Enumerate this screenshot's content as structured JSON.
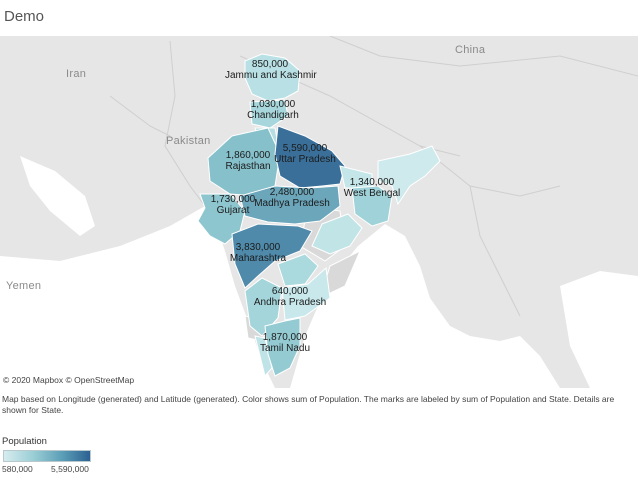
{
  "title": "Demo",
  "map": {
    "countries": [
      {
        "id": "iran",
        "name": "Iran"
      },
      {
        "id": "pakistan",
        "name": "Pakistan"
      },
      {
        "id": "china",
        "name": "China"
      },
      {
        "id": "yemen",
        "name": "Yemen"
      }
    ],
    "states": [
      {
        "id": "jammu-and-kashmir",
        "name": "Jammu and Kashmir",
        "population_label": "850,000",
        "population": 850000
      },
      {
        "id": "chandigarh",
        "name": "Chandigarh",
        "population_label": "1,030,000",
        "population": 1030000
      },
      {
        "id": "rajasthan",
        "name": "Rajasthan",
        "population_label": "1,860,000",
        "population": 1860000
      },
      {
        "id": "uttar-pradesh",
        "name": "Uttar Pradesh",
        "population_label": "5,590,000",
        "population": 5590000
      },
      {
        "id": "west-bengal",
        "name": "West Bengal",
        "population_label": "1,340,000",
        "population": 1340000
      },
      {
        "id": "madhya-pradesh",
        "name": "Madhya Pradesh",
        "population_label": "2,480,000",
        "population": 2480000
      },
      {
        "id": "gujarat",
        "name": "Gujarat",
        "population_label": "1,730,000",
        "population": 1730000
      },
      {
        "id": "maharashtra",
        "name": "Maharashtra",
        "population_label": "3,830,000",
        "population": 3830000
      },
      {
        "id": "andhra-pradesh",
        "name": "Andhra Pradesh",
        "population_label": "640,000",
        "population": 640000
      },
      {
        "id": "tamil-nadu",
        "name": "Tamil Nadu",
        "population_label": "1,870,000",
        "population": 1870000
      }
    ],
    "attribution": "© 2020 Mapbox © OpenStreetMap",
    "colors": {
      "water": "#ffffff",
      "land": "#e6e6e6",
      "low": "#d6ecef",
      "high": "#2c6192"
    }
  },
  "caption": "Map based on Longitude (generated) and Latitude (generated).  Color shows sum of Population.  The marks are labeled by sum of Population and State.  Details are shown for State.",
  "legend": {
    "title": "Population",
    "min_label": "580,000",
    "max_label": "5,590,000"
  }
}
